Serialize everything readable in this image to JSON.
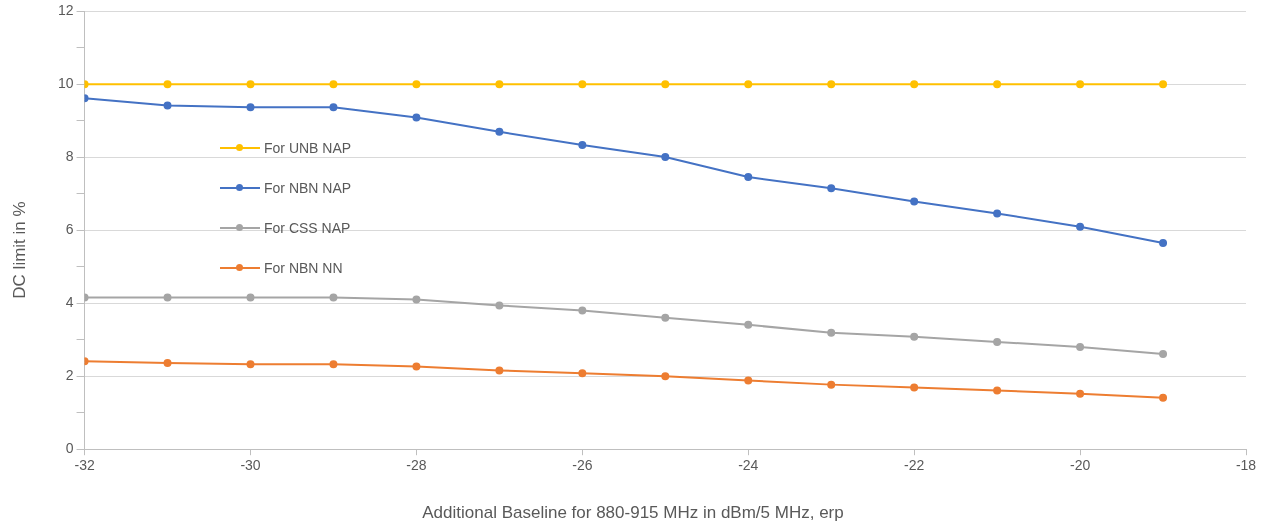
{
  "chart_data": {
    "type": "line",
    "xlabel": "Additional Baseline for 880-915 MHz in dBm/5 MHz, erp",
    "ylabel": "DC limit in %",
    "x": [
      -32,
      -31,
      -30,
      -29,
      -28,
      -27,
      -26,
      -25,
      -24,
      -23,
      -22,
      -21,
      -20,
      -19
    ],
    "series": [
      {
        "name": "For UNB NAP",
        "color": "#ffc000",
        "values": [
          10,
          10,
          10,
          10,
          10,
          10,
          10,
          10,
          10,
          10,
          10,
          10,
          10,
          10
        ]
      },
      {
        "name": "For NBN NAP",
        "color": "#4472c4",
        "values": [
          9.62,
          9.42,
          9.37,
          9.37,
          9.09,
          8.7,
          8.34,
          8.01,
          7.46,
          7.15,
          6.79,
          6.46,
          6.1,
          5.65
        ]
      },
      {
        "name": "For CSS NAP",
        "color": "#a5a5a5",
        "values": [
          4.16,
          4.16,
          4.16,
          4.16,
          4.1,
          3.94,
          3.8,
          3.6,
          3.41,
          3.19,
          3.08,
          2.94,
          2.8,
          2.61
        ]
      },
      {
        "name": "For NBN NN",
        "color": "#ed7d31",
        "values": [
          2.41,
          2.36,
          2.33,
          2.33,
          2.27,
          2.16,
          2.08,
          2.0,
          1.88,
          1.77,
          1.69,
          1.61,
          1.52,
          1.41
        ]
      }
    ],
    "xlim": [
      -32,
      -18
    ],
    "xticks": [
      -32,
      -30,
      -28,
      -26,
      -24,
      -22,
      -20,
      -18
    ],
    "ylim": [
      0,
      12
    ],
    "yticks": [
      0,
      {
        "value": 1,
        "label": null
      },
      2,
      {
        "value": 3,
        "label": null
      },
      4,
      {
        "value": 5,
        "label": null
      },
      6,
      {
        "value": 7,
        "label": null
      },
      8,
      {
        "value": 9,
        "label": null
      },
      10,
      {
        "value": 11,
        "label": null
      },
      12
    ],
    "grid": "y",
    "legend": "left",
    "marker": "circle",
    "line_style": "solid"
  }
}
